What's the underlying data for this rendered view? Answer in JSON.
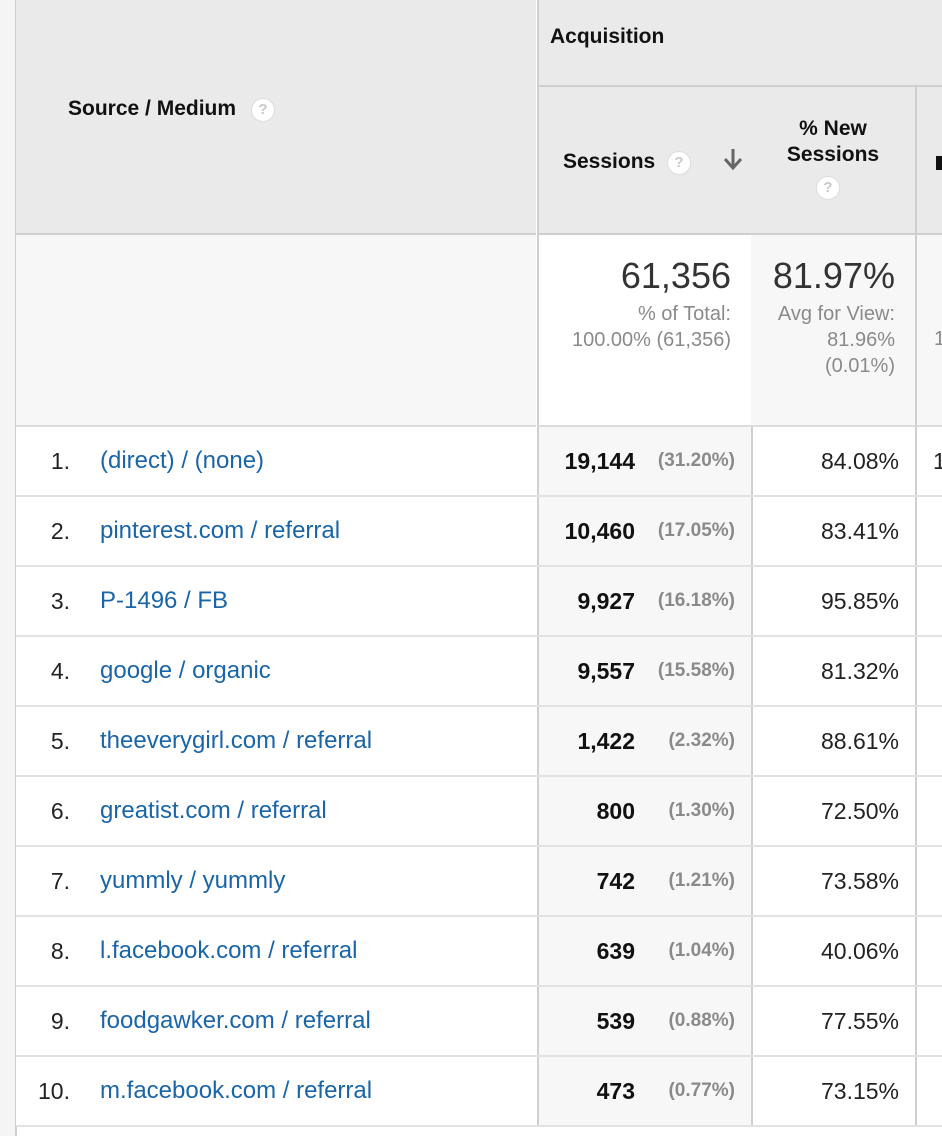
{
  "header": {
    "source_medium": "Source / Medium",
    "acquisition": "Acquisition",
    "sessions": "Sessions",
    "new_sessions_line1": "% New",
    "new_sessions_line2": "Sessions",
    "help_glyph": "?",
    "sort_icon": "arrow-down-icon"
  },
  "totals": {
    "sessions_value": "61,356",
    "sessions_sub1": "% of Total:",
    "sessions_sub2": "100.00% (61,356)",
    "new_value": "81.97%",
    "new_sub1": "Avg for View:",
    "new_sub2": "81.96%",
    "new_sub3": "(0.01%)",
    "next_peek": "1"
  },
  "rows": [
    {
      "rank": "1.",
      "source": "(direct) / (none)",
      "sessions": "19,144",
      "pct": "(31.20%)",
      "new": "84.08%",
      "next": "1"
    },
    {
      "rank": "2.",
      "source": "pinterest.com / referral",
      "sessions": "10,460",
      "pct": "(17.05%)",
      "new": "83.41%",
      "next": ""
    },
    {
      "rank": "3.",
      "source": "P-1496 / FB",
      "sessions": "9,927",
      "pct": "(16.18%)",
      "new": "95.85%",
      "next": ""
    },
    {
      "rank": "4.",
      "source": "google / organic",
      "sessions": "9,557",
      "pct": "(15.58%)",
      "new": "81.32%",
      "next": ""
    },
    {
      "rank": "5.",
      "source": "theeverygirl.com / referral",
      "sessions": "1,422",
      "pct": "(2.32%)",
      "new": "88.61%",
      "next": ""
    },
    {
      "rank": "6.",
      "source": "greatist.com / referral",
      "sessions": "800",
      "pct": "(1.30%)",
      "new": "72.50%",
      "next": ""
    },
    {
      "rank": "7.",
      "source": "yummly / yummly",
      "sessions": "742",
      "pct": "(1.21%)",
      "new": "73.58%",
      "next": ""
    },
    {
      "rank": "8.",
      "source": "l.facebook.com / referral",
      "sessions": "639",
      "pct": "(1.04%)",
      "new": "40.06%",
      "next": ""
    },
    {
      "rank": "9.",
      "source": "foodgawker.com / referral",
      "sessions": "539",
      "pct": "(0.88%)",
      "new": "77.55%",
      "next": ""
    },
    {
      "rank": "10.",
      "source": "m.facebook.com / referral",
      "sessions": "473",
      "pct": "(0.77%)",
      "new": "73.15%",
      "next": ""
    }
  ],
  "colors": {
    "link": "#1a65a8",
    "header_bg": "#eaeaea",
    "muted": "#8a8a8a"
  }
}
